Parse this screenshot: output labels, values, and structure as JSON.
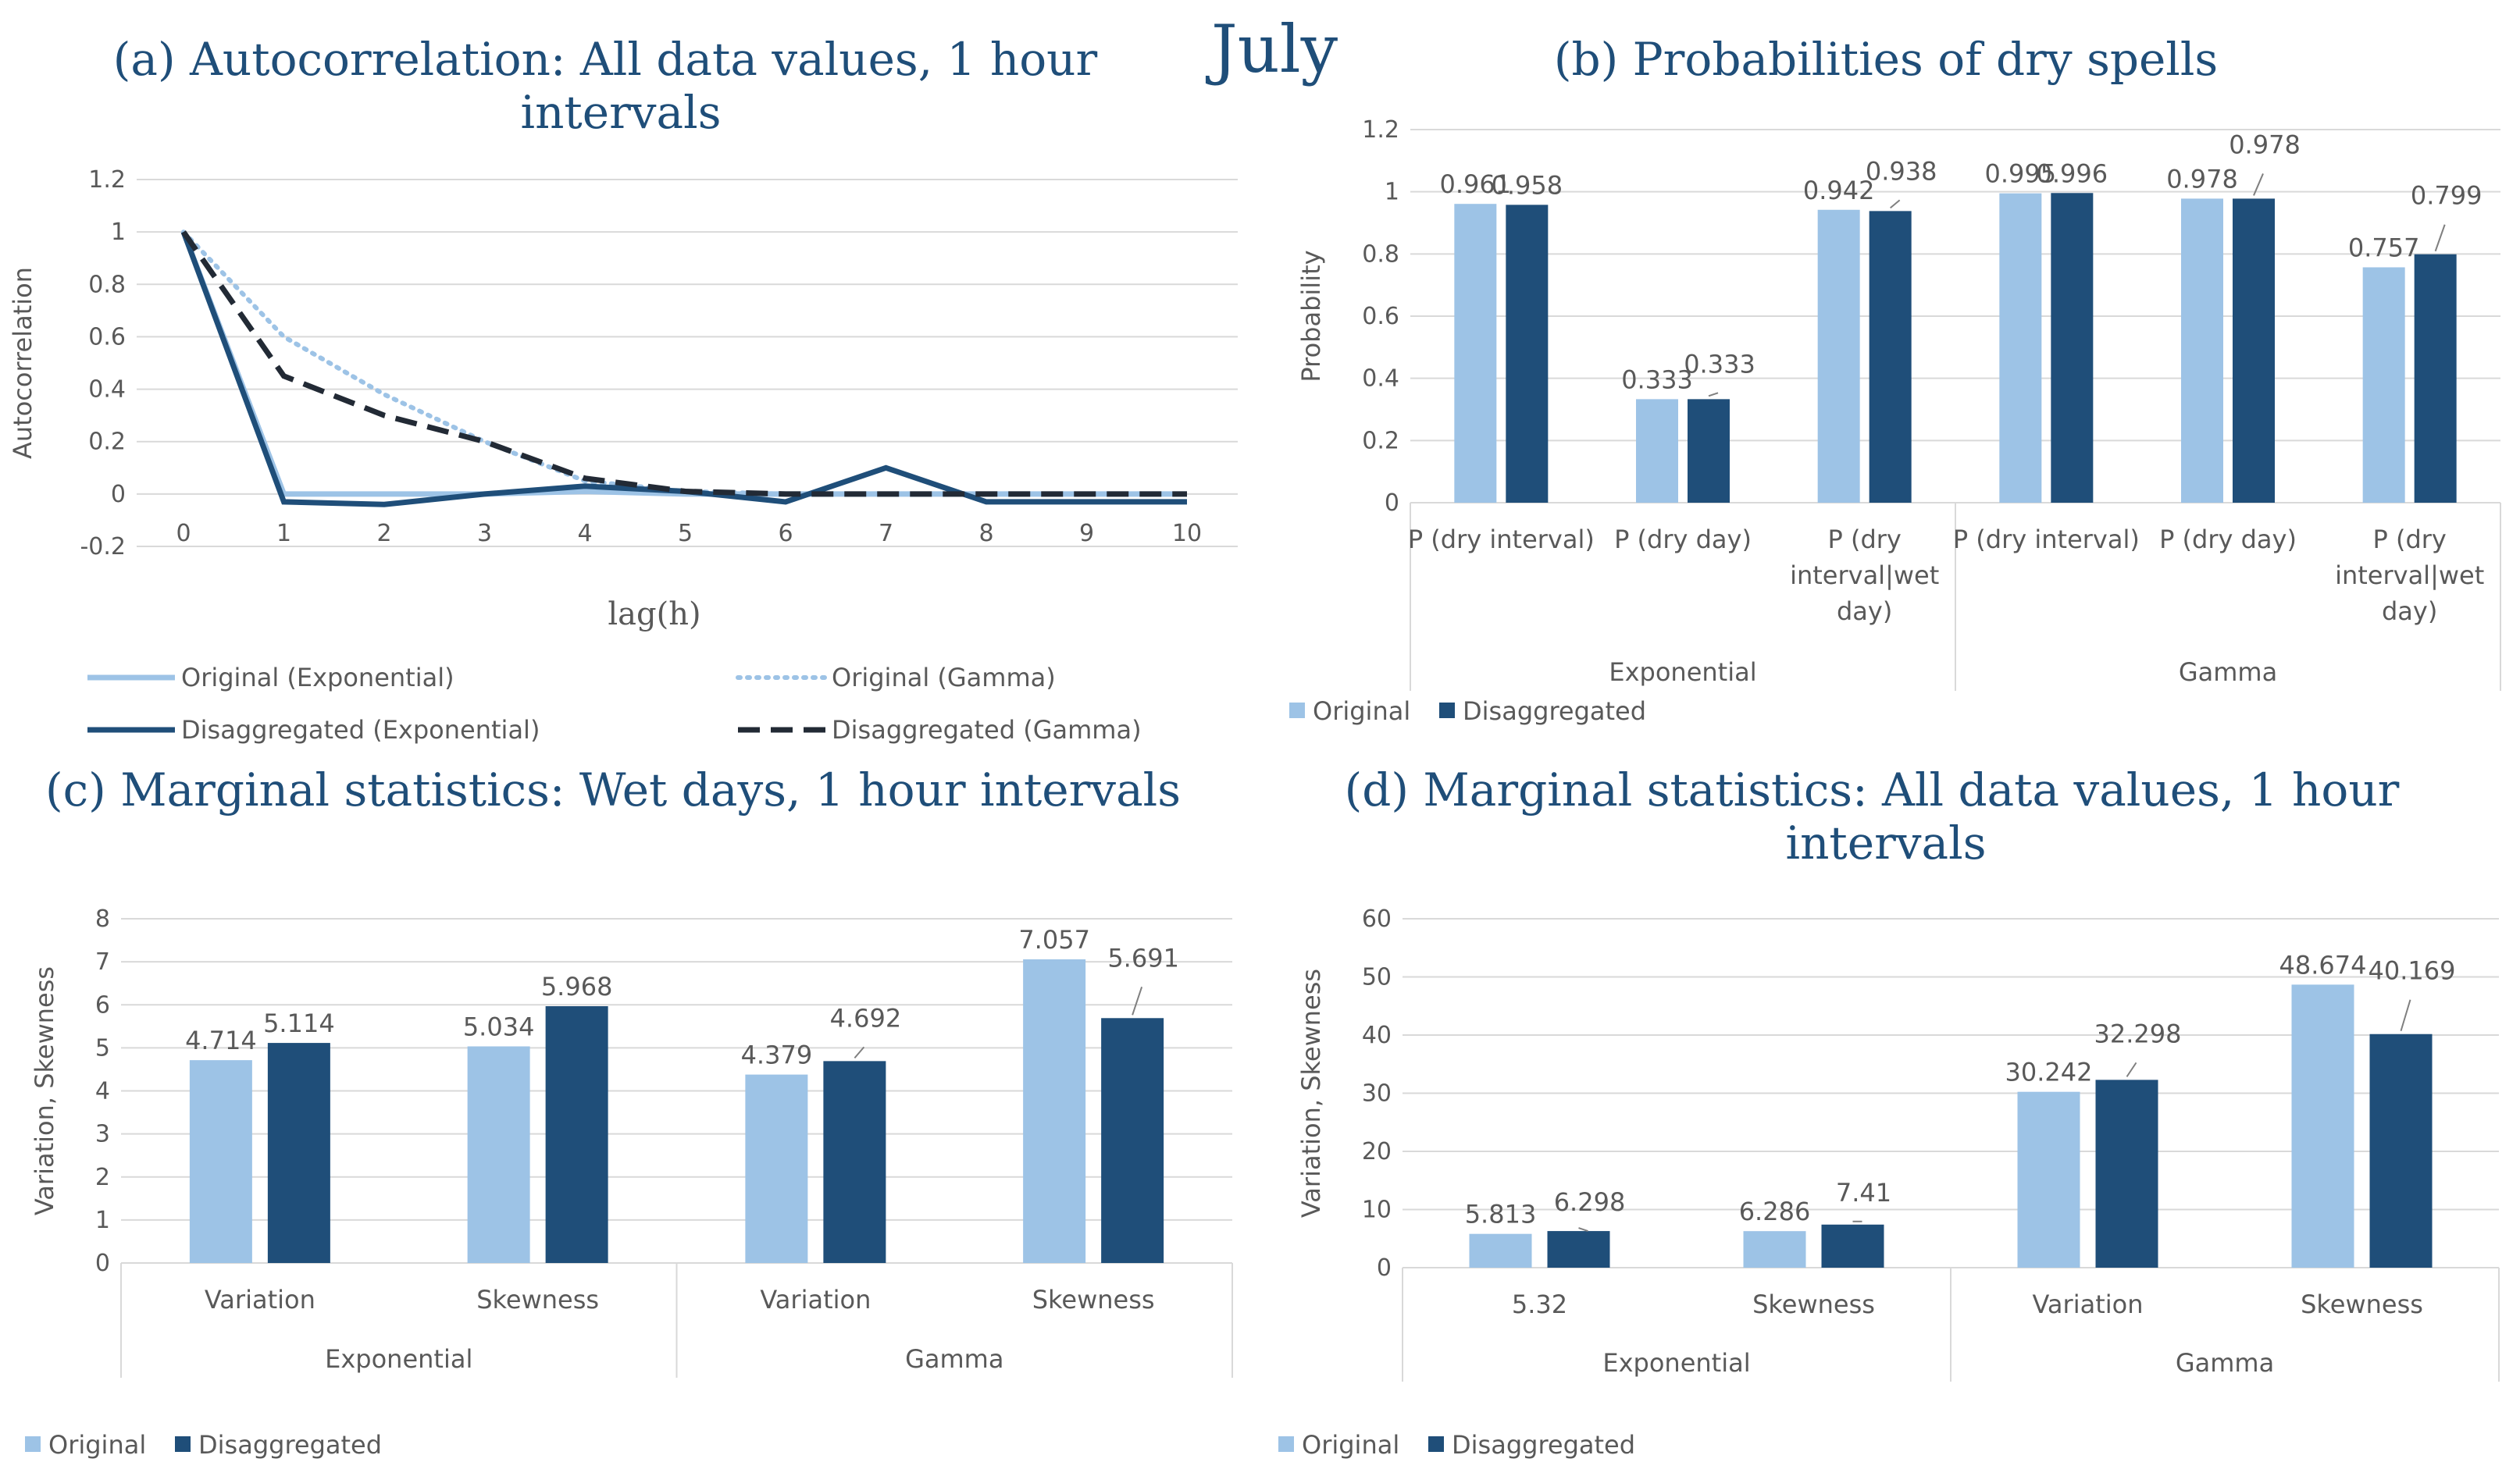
{
  "figure": {
    "month": "July",
    "colors": {
      "original": "#9dc3e6",
      "disaggregated": "#1f4e79",
      "title": "#1f4e79",
      "text": "#595959",
      "grid": "#d9d9d9"
    }
  },
  "chart_data": [
    {
      "id": "a",
      "type": "line",
      "panel": "(a)",
      "title_lines": [
        "Autocorrelation: All data values, 1 hour",
        "intervals"
      ],
      "xlabel": "lag(h)",
      "ylabel": "Autocorrelation",
      "x": [
        0,
        1,
        2,
        3,
        4,
        5,
        6,
        7,
        8,
        9,
        10
      ],
      "ylim": [
        -0.2,
        1.2
      ],
      "yticks": [
        -0.2,
        0,
        0.2,
        0.4,
        0.6,
        0.8,
        1,
        1.2
      ],
      "ytick_labels": [
        "-0.2",
        "0",
        "0.2",
        "0.4",
        "0.6",
        "0.8",
        "1",
        "1.2"
      ],
      "series": [
        {
          "name": "Original (Exponential)",
          "style": "solid-light",
          "values": [
            1,
            0,
            0,
            0,
            0.01,
            0,
            0,
            0,
            0,
            0,
            0
          ]
        },
        {
          "name": "Original (Gamma)",
          "style": "dotted",
          "values": [
            1,
            0.6,
            0.38,
            0.2,
            0.05,
            0.01,
            0,
            0,
            0,
            0,
            0
          ]
        },
        {
          "name": "Disaggregated (Exponential)",
          "style": "solid-dark",
          "values": [
            1,
            -0.03,
            -0.04,
            0,
            0.03,
            0.01,
            -0.03,
            0.1,
            -0.03,
            -0.03,
            -0.03
          ]
        },
        {
          "name": "Disaggregated (Gamma)",
          "style": "dashed",
          "values": [
            1,
            0.45,
            0.3,
            0.2,
            0.06,
            0.01,
            0,
            0,
            0,
            0,
            0
          ]
        }
      ]
    },
    {
      "id": "b",
      "type": "bar",
      "panel": "(b)",
      "title_lines": [
        "Probabilities of dry spells"
      ],
      "ylabel": "Probability",
      "ylim": [
        0,
        1.2
      ],
      "yticks": [
        0,
        0.2,
        0.4,
        0.6,
        0.8,
        1,
        1.2
      ],
      "ytick_labels": [
        "0",
        "0.2",
        "0.4",
        "0.6",
        "0.8",
        "1",
        "1.2"
      ],
      "groups": [
        "Exponential",
        "Gamma"
      ],
      "categories": [
        [
          "P (dry interval)"
        ],
        [
          "P (dry day)"
        ],
        [
          "P (dry",
          "interval|wet",
          "day)"
        ],
        [
          "P (dry interval)"
        ],
        [
          "P (dry day)"
        ],
        [
          "P (dry",
          "interval|wet",
          "day)"
        ]
      ],
      "series": [
        {
          "name": "Original",
          "values": [
            0.961,
            0.333,
            0.942,
            0.995,
            0.978,
            0.757
          ],
          "labels": [
            "0.961",
            "0.333",
            "0.942",
            "0.995",
            "0.978",
            "0.757"
          ]
        },
        {
          "name": "Disaggregated",
          "values": [
            0.958,
            0.333,
            0.938,
            0.996,
            0.978,
            0.799
          ],
          "labels": [
            "0.958",
            "0.333",
            "0.938",
            "0.996",
            "0.978",
            "0.799"
          ]
        }
      ]
    },
    {
      "id": "c",
      "type": "bar",
      "panel": "(c)",
      "title_lines": [
        "Marginal statistics: Wet days, 1 hour intervals"
      ],
      "ylabel": "Variation, Skewness",
      "ylim": [
        0,
        8
      ],
      "yticks": [
        0,
        1,
        2,
        3,
        4,
        5,
        6,
        7,
        8
      ],
      "ytick_labels": [
        "0",
        "1",
        "2",
        "3",
        "4",
        "5",
        "6",
        "7",
        "8"
      ],
      "groups": [
        "Exponential",
        "Gamma"
      ],
      "categories": [
        [
          "Variation"
        ],
        [
          "Skewness"
        ],
        [
          "Variation"
        ],
        [
          "Skewness"
        ]
      ],
      "series": [
        {
          "name": "Original",
          "values": [
            4.714,
            5.034,
            4.379,
            7.057
          ],
          "labels": [
            "4.714",
            "5.034",
            "4.379",
            "7.057"
          ]
        },
        {
          "name": "Disaggregated",
          "values": [
            5.114,
            5.968,
            4.692,
            5.691
          ],
          "labels": [
            "5.114",
            "5.968",
            "4.692",
            "5.691"
          ]
        }
      ]
    },
    {
      "id": "d",
      "type": "bar",
      "panel": "(d)",
      "title_lines": [
        "Marginal statistics: All data values, 1 hour",
        "intervals"
      ],
      "ylabel": "Variation, Skewness",
      "ylim": [
        0,
        60
      ],
      "yticks": [
        0,
        10,
        20,
        30,
        40,
        50,
        60
      ],
      "ytick_labels": [
        "0",
        "10",
        "20",
        "30",
        "40",
        "50",
        "60"
      ],
      "groups": [
        "Exponential",
        "Gamma"
      ],
      "categories": [
        [
          "5.32"
        ],
        [
          "Skewness"
        ],
        [
          "Variation"
        ],
        [
          "Skewness"
        ]
      ],
      "series": [
        {
          "name": "Original",
          "values": [
            5.813,
            6.286,
            30.242,
            48.674
          ],
          "labels": [
            "5.813",
            "6.286",
            "30.242",
            "48.674"
          ]
        },
        {
          "name": "Disaggregated",
          "values": [
            6.298,
            7.41,
            32.298,
            40.169
          ],
          "labels": [
            "6.298",
            "7.41",
            "32.298",
            "40.169"
          ]
        }
      ]
    }
  ]
}
